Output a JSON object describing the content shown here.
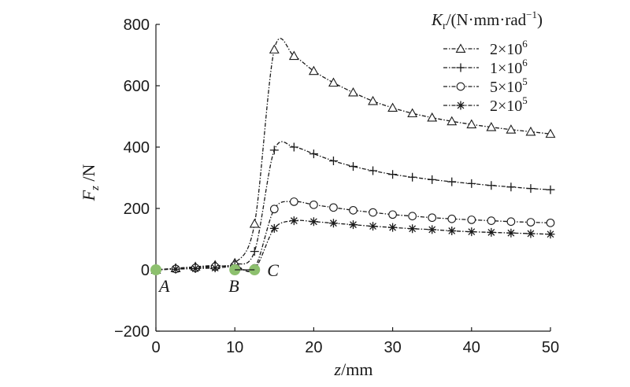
{
  "chart_data": {
    "type": "line",
    "title": "",
    "xlabel": {
      "var": "z",
      "unit": "/mm"
    },
    "ylabel": {
      "var": "F",
      "sub": "z",
      "unit": " /N"
    },
    "xlim": [
      0,
      50
    ],
    "ylim": [
      -200,
      800
    ],
    "xticks": [
      0,
      10,
      20,
      30,
      40,
      50
    ],
    "yticks": [
      -200,
      0,
      200,
      400,
      600,
      800
    ],
    "xtick_labels": [
      "0",
      "10",
      "20",
      "30",
      "40",
      "50"
    ],
    "ytick_labels": [
      "−200",
      "0",
      "200",
      "400",
      "600",
      "800"
    ],
    "grid": false,
    "legend": {
      "position": "top-right",
      "title_var": "K",
      "title_sub": "r",
      "title_unit": "/(N·mm·rad",
      "title_exp": "−1",
      "title_close": ")"
    },
    "series": [
      {
        "name": "2×10^6",
        "label_base": "2×10",
        "label_exp": "6",
        "marker": "triangle",
        "x": [
          0,
          2.5,
          5,
          7.5,
          10,
          12.5,
          15,
          17.5,
          20,
          22.5,
          25,
          27.5,
          30,
          32.5,
          35,
          37.5,
          40,
          42.5,
          45,
          47.5,
          50
        ],
        "y": [
          0,
          5,
          10,
          15,
          22,
          150,
          718,
          697,
          648,
          610,
          578,
          550,
          528,
          510,
          496,
          484,
          474,
          465,
          457,
          450,
          443
        ]
      },
      {
        "name": "1×10^6",
        "label_base": "1×10",
        "label_exp": "6",
        "marker": "plus",
        "x": [
          0,
          2.5,
          5,
          7.5,
          10,
          12.5,
          15,
          17.5,
          20,
          22.5,
          25,
          27.5,
          30,
          32.5,
          35,
          37.5,
          40,
          42.5,
          45,
          47.5,
          50
        ],
        "y": [
          0,
          4,
          8,
          12,
          18,
          60,
          390,
          400,
          378,
          355,
          337,
          323,
          311,
          302,
          294,
          287,
          281,
          275,
          270,
          265,
          261
        ]
      },
      {
        "name": "5×10^5",
        "label_base": "5×10",
        "label_exp": "5",
        "marker": "circle",
        "x": [
          0,
          2.5,
          5,
          7.5,
          10,
          12.5,
          15,
          17.5,
          20,
          22.5,
          25,
          27.5,
          30,
          32.5,
          35,
          37.5,
          40,
          42.5,
          45,
          47.5,
          50
        ],
        "y": [
          0,
          3,
          6,
          10,
          14,
          5,
          198,
          222,
          212,
          203,
          194,
          187,
          180,
          175,
          170,
          166,
          163,
          160,
          157,
          155,
          153
        ]
      },
      {
        "name": "2×10^5",
        "label_base": "2×10",
        "label_exp": "5",
        "marker": "star",
        "x": [
          0,
          2.5,
          5,
          7.5,
          10,
          12.5,
          15,
          17.5,
          20,
          22.5,
          25,
          27.5,
          30,
          32.5,
          35,
          37.5,
          40,
          42.5,
          45,
          47.5,
          50
        ],
        "y": [
          0,
          2,
          4,
          6,
          10,
          2,
          135,
          160,
          157,
          152,
          147,
          142,
          138,
          134,
          131,
          127,
          124,
          122,
          120,
          118,
          116
        ]
      }
    ],
    "annotations": [
      {
        "label": "A",
        "x": 0,
        "y": 0
      },
      {
        "label": "B",
        "x": 10,
        "y": 0
      },
      {
        "label": "C",
        "x": 12.5,
        "y": 0
      }
    ],
    "annotation_color": "#8dc06e",
    "line_color": "#1a1a1a"
  }
}
